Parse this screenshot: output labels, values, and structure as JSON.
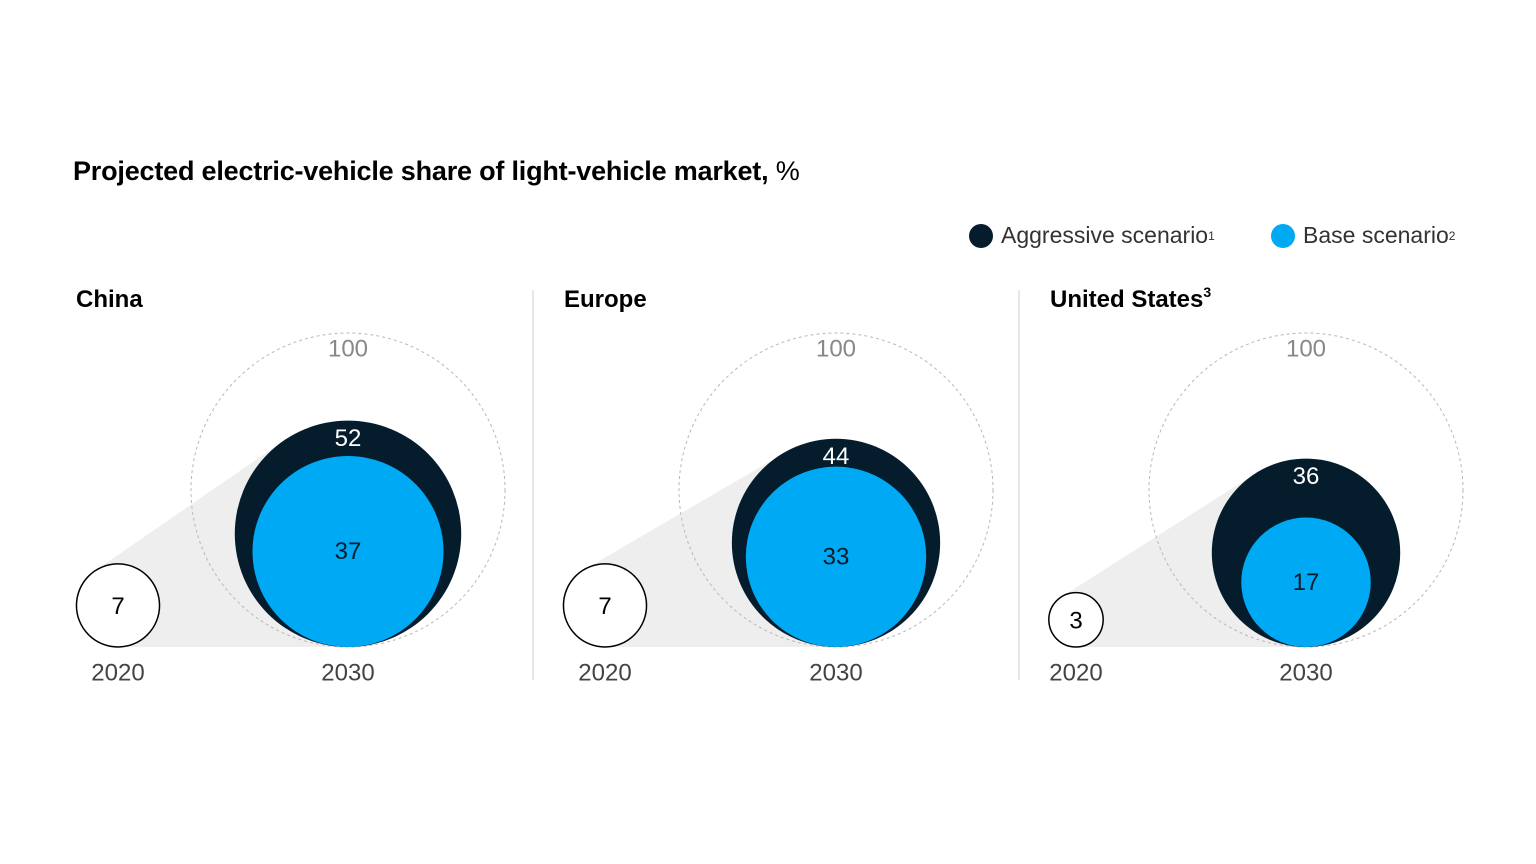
{
  "title": "Projected electric-vehicle share of light-vehicle market,",
  "title_unit": "%",
  "legend": {
    "aggressive": {
      "label": "Aggressive scenario",
      "footnote": "1",
      "color": "#051c2c"
    },
    "base": {
      "label": "Base scenario",
      "footnote": "2",
      "color": "#00a9f4"
    }
  },
  "chart_data": {
    "type": "bubble",
    "title": "Projected electric-vehicle share of light-vehicle market, %",
    "reference_value": 100,
    "reference_label": "100",
    "years": [
      "2020",
      "2030"
    ],
    "series": [
      {
        "name": "Aggressive scenario",
        "color": "#051c2c"
      },
      {
        "name": "Base scenario",
        "color": "#00a9f4"
      }
    ],
    "panels": [
      {
        "region": "China",
        "footnote": "",
        "value_2020": 7,
        "aggressive_2030": 52,
        "base_2030": 37
      },
      {
        "region": "Europe",
        "footnote": "",
        "value_2020": 7,
        "aggressive_2030": 44,
        "base_2030": 33
      },
      {
        "region": "United States",
        "footnote": "3",
        "value_2020": 3,
        "aggressive_2030": 36,
        "base_2030": 17
      }
    ]
  }
}
